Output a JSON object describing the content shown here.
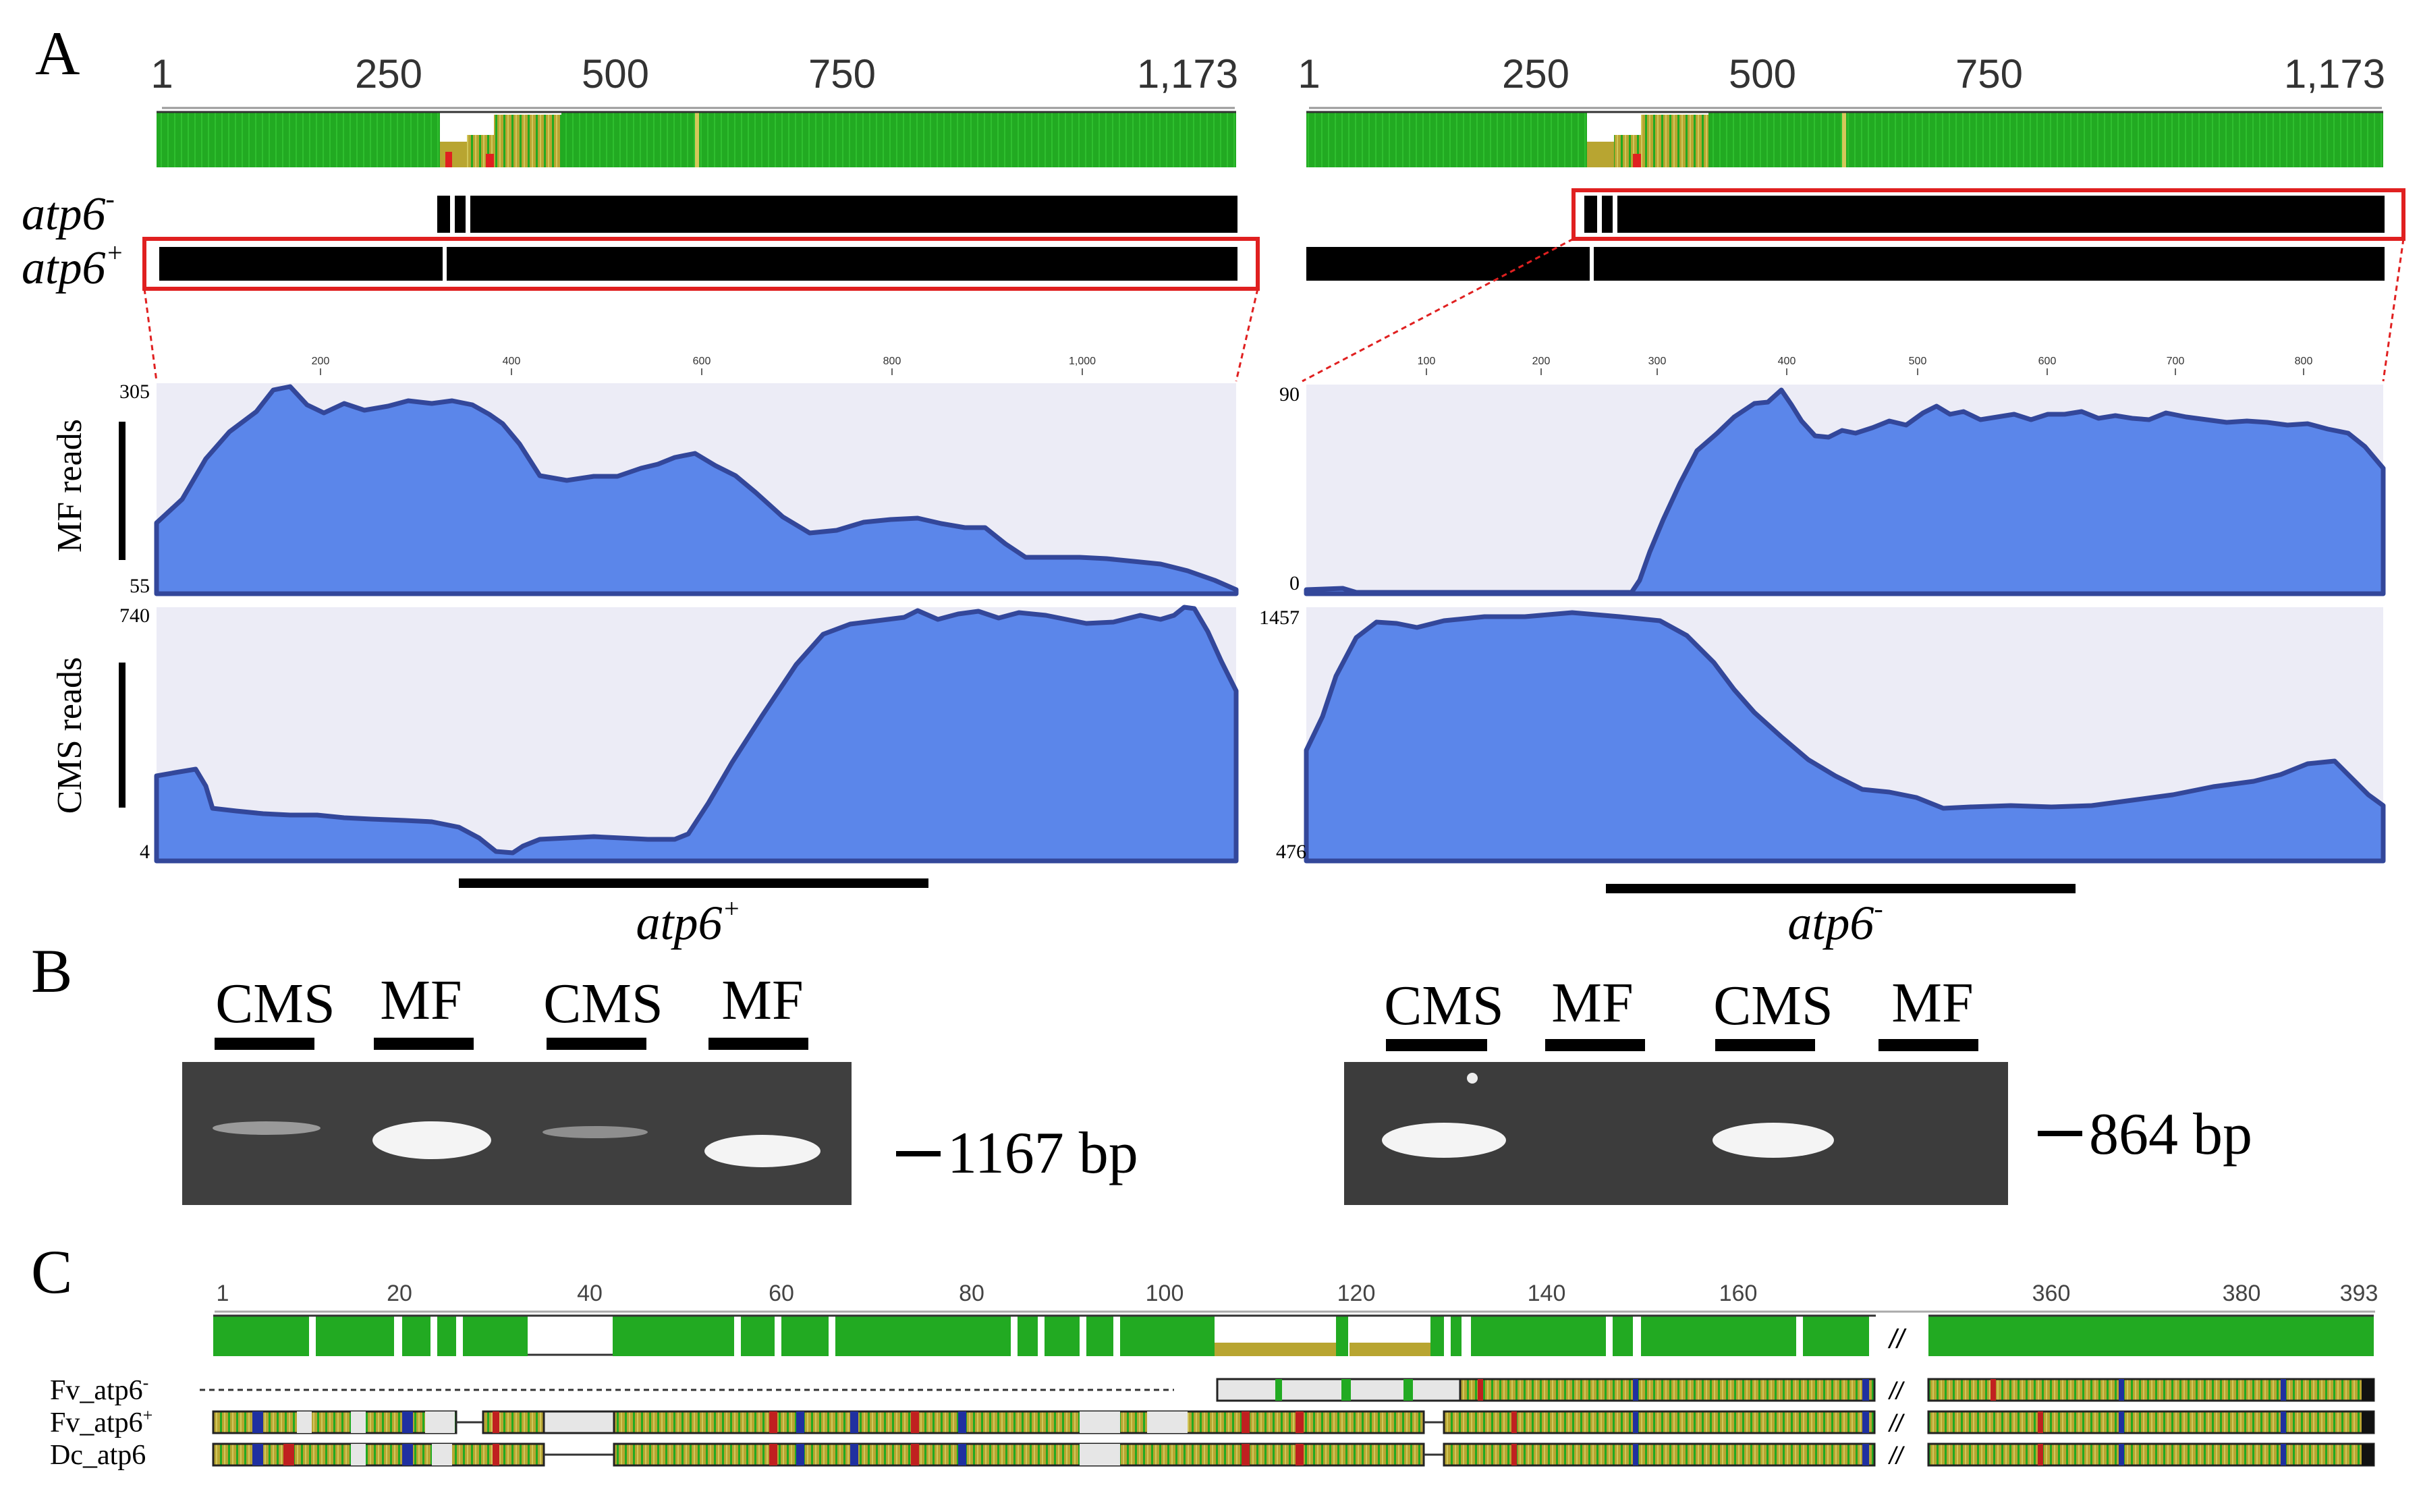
{
  "panel_labels": {
    "a": "A",
    "b": "B",
    "c": "C"
  },
  "panel_a": {
    "left": {
      "ruler_ticks": [
        "1",
        "250",
        "500",
        "750",
        "1,173"
      ],
      "track_top_label": "atp6",
      "track_top_sup": "-",
      "track_bottom_label": "atp6",
      "track_bottom_sup": "+",
      "coverage_axis_ticks": [
        "200",
        "400",
        "600",
        "800",
        "1,000"
      ],
      "mf_ymax": "305",
      "mf_ymin": "55",
      "cms_ymax": "740",
      "cms_ymin": "4",
      "gene_label": "atp6",
      "gene_sup": "+"
    },
    "right": {
      "ruler_ticks": [
        "1",
        "250",
        "500",
        "750",
        "1,173"
      ],
      "coverage_axis_ticks": [
        "100",
        "200",
        "300",
        "400",
        "500",
        "600",
        "700",
        "800"
      ],
      "mf_ymax": "90",
      "mf_ymin": "0",
      "cms_ymax": "1457",
      "cms_ymin": "476",
      "gene_label": "atp6",
      "gene_sup": "-"
    },
    "mf_reads_label": "MF reads",
    "cms_reads_label": "CMS reads",
    "colors": {
      "identity_green": "#22aa22",
      "identity_olive": "#b8a531",
      "identity_red": "#e02020",
      "coverage_fill": "#5b86ea",
      "coverage_edge": "#33479a",
      "coverage_bg": "#ececf6",
      "highlight_box": "#e02020"
    }
  },
  "panel_b": {
    "left": {
      "lanes": [
        "CMS",
        "MF",
        "CMS",
        "MF"
      ],
      "size_label": "1167 bp"
    },
    "right": {
      "lanes": [
        "CMS",
        "MF",
        "CMS",
        "MF"
      ],
      "size_label": "864 bp"
    }
  },
  "panel_c": {
    "ruler_ticks": [
      "1",
      "20",
      "40",
      "60",
      "80",
      "100",
      "120",
      "140",
      "160",
      "360",
      "380",
      "393"
    ],
    "break_mark": "//",
    "sequences": [
      "Fv_atp6",
      "Fv_atp6",
      "Dc_atp6"
    ],
    "sequence_sups": [
      "-",
      "+",
      ""
    ]
  }
}
